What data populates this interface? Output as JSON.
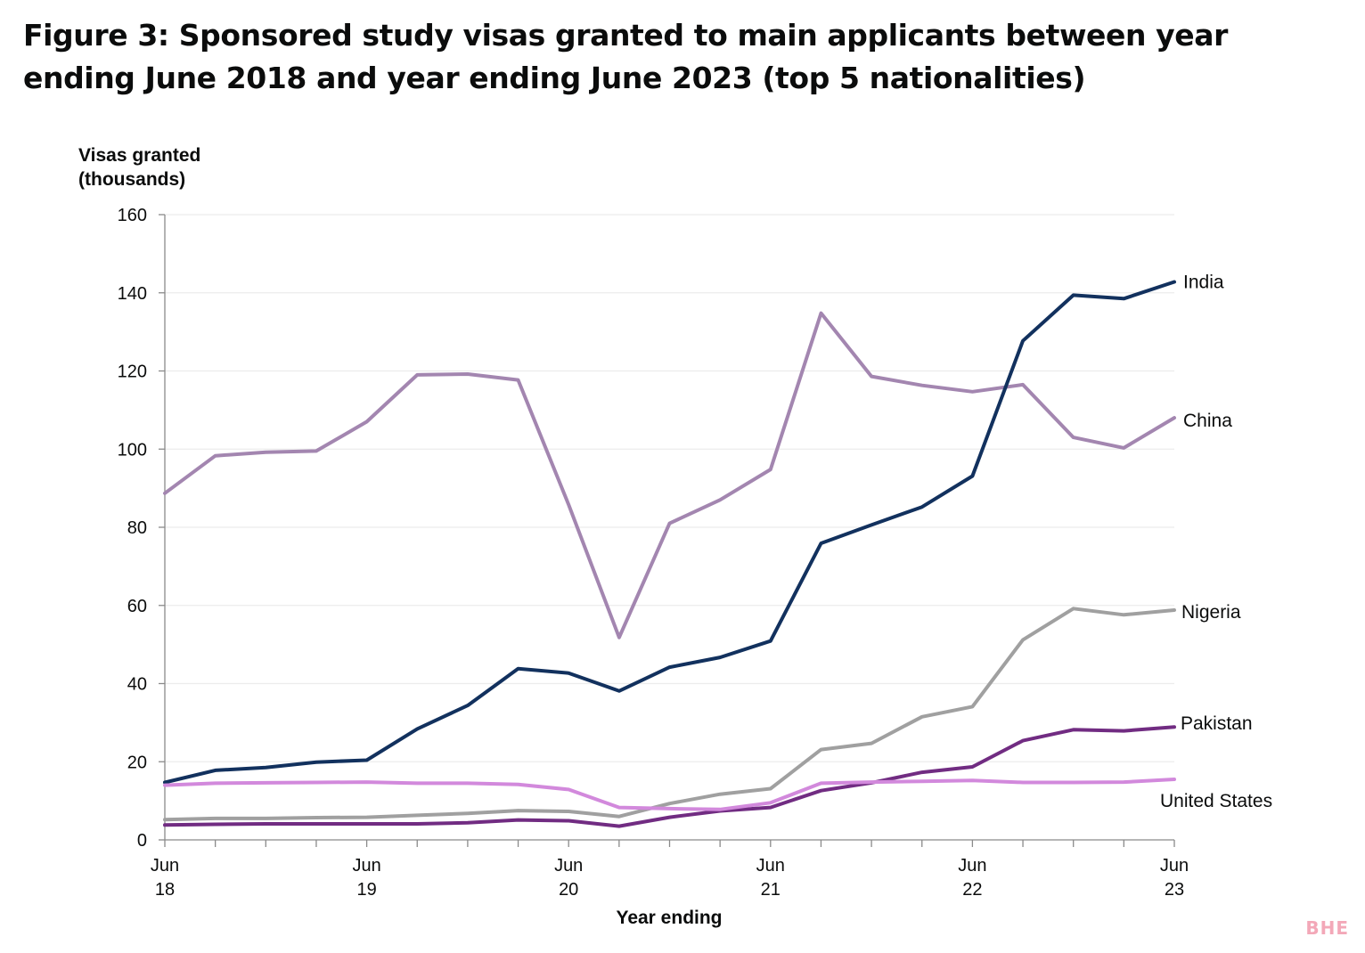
{
  "title": "Figure 3: Sponsored study visas granted to main applicants between year ending June 2018 and year ending June 2023 (top 5 nationalities)",
  "watermark": "BHE",
  "chart_data": {
    "type": "line",
    "title": "Figure 3: Sponsored study visas granted to main applicants between year ending June 2018 and year ending June 2023 (top 5 nationalities)",
    "ylabel": [
      "Visas granted",
      "(thousands)"
    ],
    "xlabel": "Year ending",
    "ylim": [
      0,
      160
    ],
    "yticks": [
      0,
      20,
      40,
      60,
      80,
      100,
      120,
      140,
      160
    ],
    "grid": "horizontal",
    "legend": "direct labels at line ends",
    "x": [
      "Jun 18",
      "Sep 18",
      "Dec 18",
      "Mar 19",
      "Jun 19",
      "Sep 19",
      "Dec 19",
      "Mar 20",
      "Jun 20",
      "Sep 20",
      "Dec 20",
      "Mar 21",
      "Jun 21",
      "Sep 21",
      "Dec 21",
      "Mar 22",
      "Jun 22",
      "Sep 22",
      "Dec 22",
      "Mar 23",
      "Jun 23"
    ],
    "xtick_labels": [
      {
        "month": "Jun",
        "year": "18"
      },
      {
        "month": "Jun",
        "year": "19"
      },
      {
        "month": "Jun",
        "year": "20"
      },
      {
        "month": "Jun",
        "year": "21"
      },
      {
        "month": "Jun",
        "year": "22"
      },
      {
        "month": "Jun",
        "year": "23"
      }
    ],
    "series": [
      {
        "name": "China",
        "color": "#a386b0",
        "values": [
          88.7,
          98.3,
          99.2,
          99.5,
          107,
          119,
          119.2,
          117.7,
          85.8,
          51.8,
          81,
          87,
          94.8,
          134.8,
          118.6,
          116.3,
          114.7,
          116.5,
          103,
          100.3,
          108
        ]
      },
      {
        "name": "India",
        "color": "#12315e",
        "values": [
          14.7,
          17.8,
          18.5,
          19.9,
          20.4,
          28.4,
          34.4,
          43.8,
          42.7,
          38.1,
          44.2,
          46.7,
          50.9,
          75.9,
          80.6,
          85.2,
          93.1,
          127.7,
          139.4,
          138.5,
          142.8
        ]
      },
      {
        "name": "Nigeria",
        "color": "#a0a0a0",
        "values": [
          5.2,
          5.5,
          5.5,
          5.7,
          5.8,
          6.3,
          6.8,
          7.5,
          7.3,
          6,
          9.3,
          11.7,
          13.1,
          23.1,
          24.7,
          31.5,
          34.1,
          51.2,
          59.2,
          57.6,
          58.8
        ]
      },
      {
        "name": "Pakistan",
        "color": "#712c82",
        "values": [
          3.8,
          4,
          4.1,
          4.1,
          4.1,
          4.1,
          4.4,
          5.1,
          4.9,
          3.5,
          5.8,
          7.4,
          8.3,
          12.6,
          14.6,
          17.3,
          18.7,
          25.4,
          28.2,
          27.9,
          28.9
        ]
      },
      {
        "name": "United States",
        "color": "#d289dc",
        "values": [
          14,
          14.5,
          14.6,
          14.7,
          14.8,
          14.5,
          14.5,
          14.2,
          12.9,
          8.3,
          8,
          7.8,
          9.5,
          14.5,
          14.8,
          15,
          15.2,
          14.7,
          14.7,
          14.8,
          15.5
        ]
      }
    ]
  }
}
